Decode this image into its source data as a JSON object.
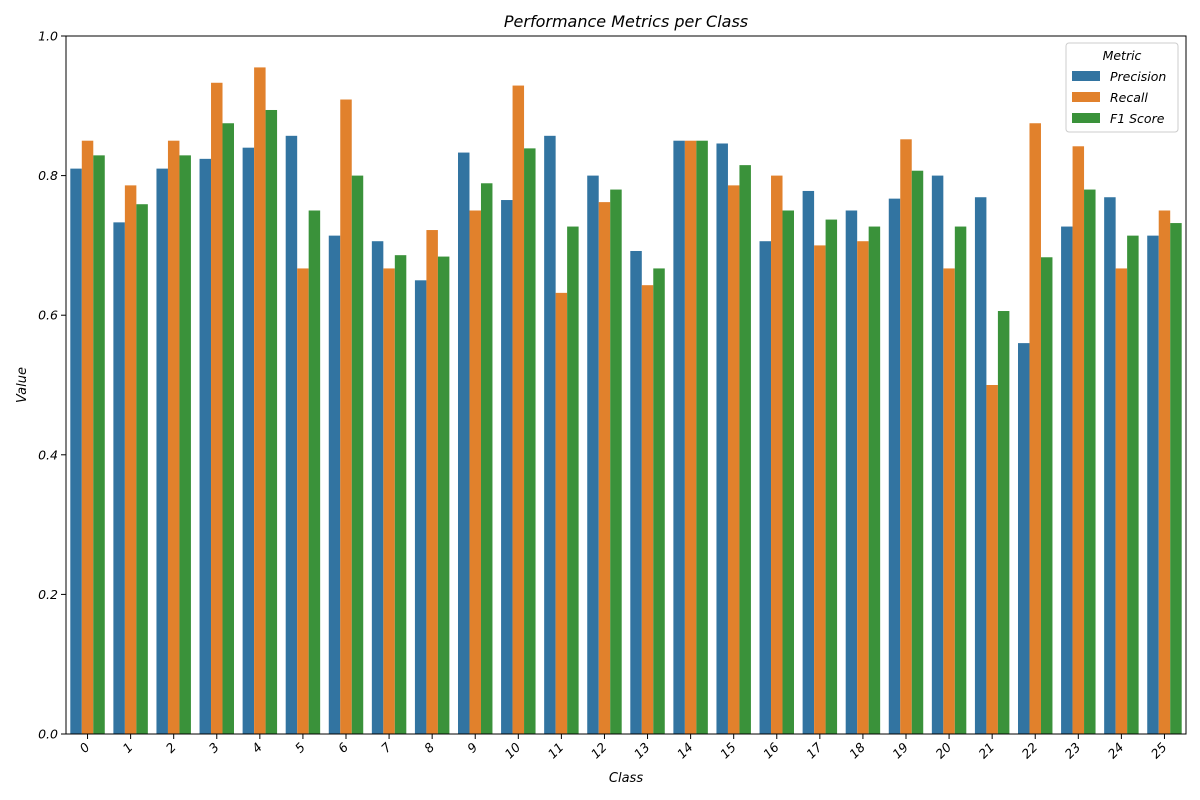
{
  "chart_data": {
    "type": "bar",
    "title": "Performance Metrics per Class",
    "xlabel": "Class",
    "ylabel": "Value",
    "ylim": [
      0,
      1.0
    ],
    "yticks": [
      "0.0",
      "0.2",
      "0.4",
      "0.6",
      "0.8",
      "1.0"
    ],
    "grid": false,
    "categories": [
      "0",
      "1",
      "2",
      "3",
      "4",
      "5",
      "6",
      "7",
      "8",
      "9",
      "10",
      "11",
      "12",
      "13",
      "14",
      "15",
      "16",
      "17",
      "18",
      "19",
      "20",
      "21",
      "22",
      "23",
      "24",
      "25"
    ],
    "legend": {
      "title": "Metric",
      "placement": "top-right"
    },
    "series": [
      {
        "name": "Precision",
        "color": "#3274a1",
        "values": [
          0.81,
          0.733,
          0.81,
          0.824,
          0.84,
          0.857,
          0.714,
          0.706,
          0.65,
          0.833,
          0.765,
          0.857,
          0.8,
          0.692,
          0.85,
          0.846,
          0.706,
          0.778,
          0.75,
          0.767,
          0.8,
          0.769,
          0.56,
          0.727,
          0.769,
          0.714
        ]
      },
      {
        "name": "Recall",
        "color": "#e1812c",
        "values": [
          0.85,
          0.786,
          0.85,
          0.933,
          0.955,
          0.667,
          0.909,
          0.667,
          0.722,
          0.75,
          0.929,
          0.632,
          0.762,
          0.643,
          0.85,
          0.786,
          0.8,
          0.7,
          0.706,
          0.852,
          0.667,
          0.5,
          0.875,
          0.842,
          0.667,
          0.75
        ]
      },
      {
        "name": "F1 Score",
        "color": "#3a923a",
        "values": [
          0.829,
          0.759,
          0.829,
          0.875,
          0.894,
          0.75,
          0.8,
          0.686,
          0.684,
          0.789,
          0.839,
          0.727,
          0.78,
          0.667,
          0.85,
          0.815,
          0.75,
          0.737,
          0.727,
          0.807,
          0.727,
          0.606,
          0.683,
          0.78,
          0.714,
          0.732
        ]
      }
    ]
  }
}
